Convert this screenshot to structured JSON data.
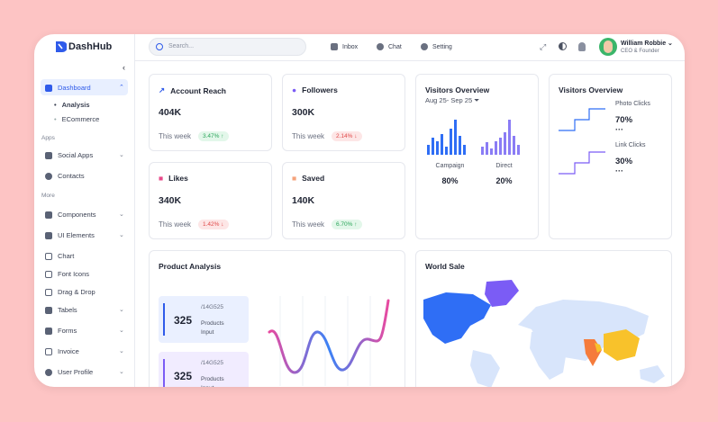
{
  "sidebar": {
    "brand": "DashHub",
    "dashboard": "Dashboard",
    "dashboard_items": [
      "Analysis",
      "ECommerce"
    ],
    "sections": [
      {
        "title": "Apps",
        "items": [
          "Social Apps",
          "Contacts"
        ]
      },
      {
        "title": "More",
        "items": [
          "Components",
          "UI Elements",
          "Chart",
          "Font Icons",
          "Drag & Drop",
          "Tabels",
          "Forms",
          "Invoice",
          "User Profile"
        ]
      }
    ]
  },
  "topbar": {
    "search_placeholder": "Search...",
    "nav": [
      "Inbox",
      "Chat",
      "Setting"
    ],
    "user": {
      "name": "William Robbie",
      "role": "CEO & Founder"
    }
  },
  "stats": [
    {
      "title": "Account Reach",
      "value": "404K",
      "period": "This week",
      "change": "3.47%"
    },
    {
      "title": "Followers",
      "value": "300K",
      "period": "This week",
      "change": "2.14%"
    },
    {
      "title": "Likes",
      "value": "340K",
      "period": "This week",
      "change": "1.42%"
    },
    {
      "title": "Saved",
      "value": "140K",
      "period": "This week",
      "change": "6.70%"
    }
  ],
  "visitors_overview": {
    "title": "Visitors Overview",
    "range": "Aug 25- Sep 25",
    "campaign": {
      "label": "Campaign",
      "value": "80%"
    },
    "direct": {
      "label": "Direct",
      "value": "20%"
    }
  },
  "visitors_clicks": {
    "title": "Visitors Overview",
    "items": [
      {
        "label": "Photo Clicks",
        "value": "70%"
      },
      {
        "label": "Link Clicks",
        "value": "30%"
      }
    ]
  },
  "product_analysis": {
    "title": "Product Analysis",
    "tiles": [
      {
        "value": "325",
        "code": "/14G525",
        "label": "Products Input"
      },
      {
        "value": "325",
        "code": "/14G525",
        "label": "Products Input"
      }
    ]
  },
  "world_sale": {
    "title": "World Sale"
  }
}
